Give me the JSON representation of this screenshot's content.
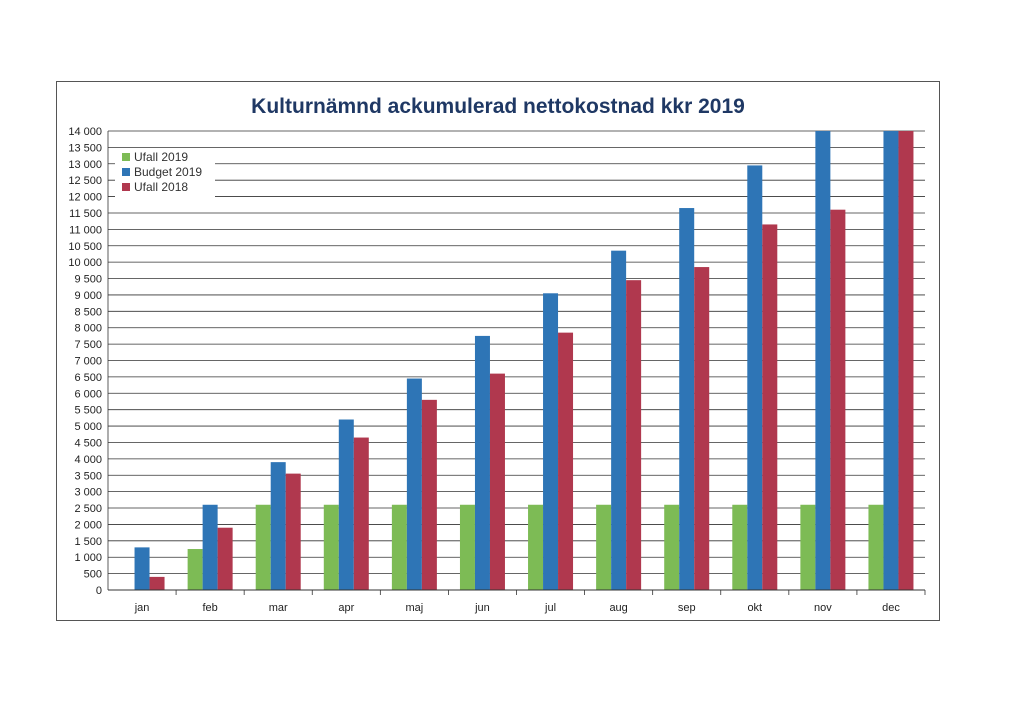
{
  "chart_data": {
    "type": "bar",
    "title": "Kulturnämnd ackumulerad nettokostnad kkr 2019",
    "categories": [
      "jan",
      "feb",
      "mar",
      "apr",
      "maj",
      "jun",
      "jul",
      "aug",
      "sep",
      "okt",
      "nov",
      "dec"
    ],
    "ylim": [
      0,
      14000
    ],
    "y_ticks": [
      0,
      500,
      1000,
      1500,
      2000,
      2500,
      3000,
      3500,
      4000,
      4500,
      5000,
      5500,
      6000,
      6500,
      7000,
      7500,
      8000,
      8500,
      9000,
      9500,
      10000,
      10500,
      11000,
      11500,
      12000,
      12500,
      13000,
      13500,
      14000
    ],
    "y_tick_labels": [
      "0",
      "500",
      "1 000",
      "1 500",
      "2 000",
      "2 500",
      "3 000",
      "3 500",
      "4 000",
      "4 500",
      "5 000",
      "5 500",
      "6 000",
      "6 500",
      "7 000",
      "7 500",
      "8 000",
      "8 500",
      "9 000",
      "9 500",
      "10 000",
      "10 500",
      "11 000",
      "11 500",
      "12 000",
      "12 500",
      "13 000",
      "13 500",
      "14 000"
    ],
    "grid": true,
    "legend_position": "top-left",
    "series": [
      {
        "name": "Ufall 2019",
        "color": "#7dbb55",
        "values": [
          0,
          1250,
          2600,
          2600,
          2600,
          2600,
          2600,
          2600,
          2600,
          2600,
          2600,
          2600
        ]
      },
      {
        "name": "Budget 2019",
        "color": "#2e75b6",
        "values": [
          1300,
          2600,
          3900,
          5200,
          6450,
          7750,
          9050,
          10350,
          11650,
          12950,
          14000,
          14000
        ]
      },
      {
        "name": "Ufall 2018",
        "color": "#b0384e",
        "values": [
          400,
          1900,
          3550,
          4650,
          5800,
          6600,
          7850,
          9450,
          9850,
          11150,
          11600,
          14000
        ]
      }
    ]
  }
}
